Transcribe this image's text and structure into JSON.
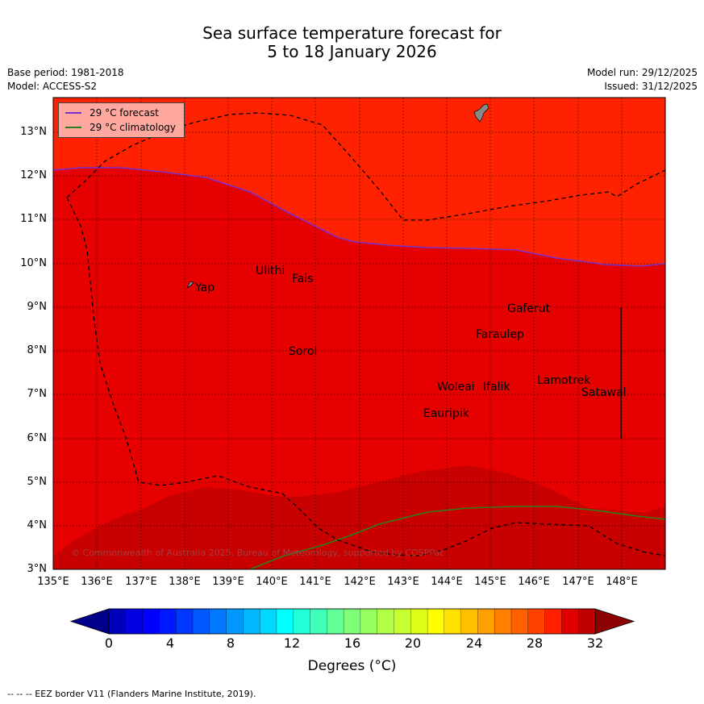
{
  "header": {
    "title_line1": "Sea surface temperature forecast for",
    "title_line2": "5 to 18 January 2026",
    "base_period": "Base period: 1981-2018",
    "model": "Model: ACCESS-S2",
    "model_run": "Model run: 29/12/2025",
    "issued": "Issued: 31/12/2025"
  },
  "map": {
    "lat_labels": [
      "13°N",
      "12°N",
      "11°N",
      "10°N",
      "9°N",
      "8°N",
      "7°N",
      "6°N",
      "5°N",
      "4°N",
      "3°N"
    ],
    "lon_labels": [
      "135°E",
      "136°E",
      "137°E",
      "138°E",
      "139°E",
      "140°E",
      "141°E",
      "142°E",
      "143°E",
      "144°E",
      "145°E",
      "146°E",
      "147°E",
      "148°E"
    ],
    "places": [
      "Yap",
      "Ulithi",
      "Fais",
      "Sorol",
      "Gaferut",
      "Faraulep",
      "Woleai",
      "Ifalik",
      "Lamotrek",
      "Satawal",
      "Eauripik"
    ],
    "legend": {
      "forecast": "29 °C  forecast",
      "climatology": "29 °C  climatology"
    },
    "copyright": "© Commonwealth of Australia 2025, Bureau of Meteorology, supported by COSPPac",
    "colors": {
      "band_28_29": "#ff2200",
      "band_29_30": "#e60000",
      "band_30_31": "#c80000",
      "forecast_line": "#7a30c8",
      "climatology_line": "#2e7d1e",
      "land": "#888888"
    }
  },
  "colorbar": {
    "tick_labels": [
      "0",
      "4",
      "8",
      "12",
      "16",
      "20",
      "24",
      "28",
      "32"
    ],
    "title": "Degrees (°C)",
    "colors": [
      "#00008b",
      "#0000b8",
      "#0000e0",
      "#0000ff",
      "#0018ff",
      "#0038ff",
      "#0058ff",
      "#0078ff",
      "#0098ff",
      "#00b8ff",
      "#00d8ff",
      "#00ffff",
      "#20ffd8",
      "#40ffb8",
      "#60ff98",
      "#80ff78",
      "#98ff60",
      "#b0ff48",
      "#c8ff30",
      "#e0ff18",
      "#ffff00",
      "#ffe000",
      "#ffc000",
      "#ffa000",
      "#ff8000",
      "#ff6000",
      "#ff4000",
      "#ff2000",
      "#e00000",
      "#c00000",
      "#8b0000"
    ]
  },
  "footnote": "--  --  -- EEZ border V11 (Flanders Marine Institute, 2019)."
}
